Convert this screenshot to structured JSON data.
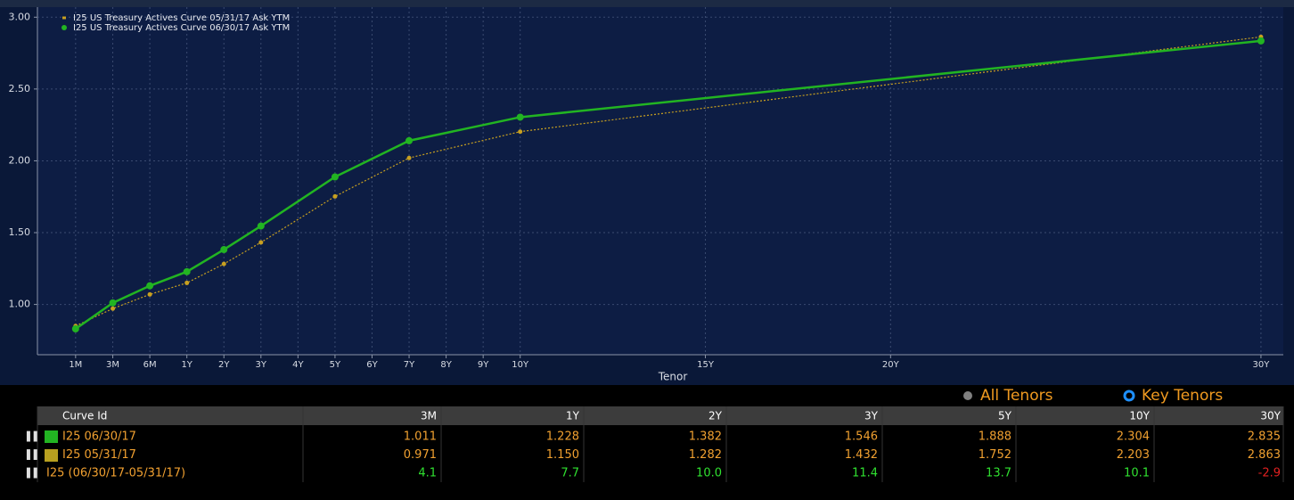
{
  "chart_data": {
    "type": "line",
    "x_label": "Tenor",
    "x": [
      0.083,
      0.25,
      0.5,
      1,
      2,
      3,
      5,
      7,
      10,
      30
    ],
    "series": [
      {
        "name": "I25 US Treasury Actives Curve 05/31/17 Ask YTM",
        "color": "#c8a020",
        "values": [
          0.85,
          0.971,
          1.07,
          1.15,
          1.282,
          1.432,
          1.752,
          2.02,
          2.203,
          2.863
        ]
      },
      {
        "name": "I25 US Treasury Actives Curve 06/30/17 Ask YTM",
        "color": "#22b422",
        "values": [
          0.83,
          1.011,
          1.13,
          1.228,
          1.382,
          1.546,
          1.888,
          2.14,
          2.304,
          2.835
        ]
      }
    ],
    "xlim": [
      0,
      30.5
    ],
    "xticks": [
      {
        "value": 0.083,
        "label": "1M"
      },
      {
        "value": 0.25,
        "label": "3M"
      },
      {
        "value": 0.5,
        "label": "6M"
      },
      {
        "value": 1,
        "label": "1Y"
      },
      {
        "value": 2,
        "label": "2Y"
      },
      {
        "value": 3,
        "label": "3Y"
      },
      {
        "value": 4,
        "label": "4Y"
      },
      {
        "value": 5,
        "label": "5Y"
      },
      {
        "value": 6,
        "label": "6Y"
      },
      {
        "value": 7,
        "label": "7Y"
      },
      {
        "value": 8,
        "label": "8Y"
      },
      {
        "value": 9,
        "label": "9Y"
      },
      {
        "value": 10,
        "label": "10Y"
      },
      {
        "value": 15,
        "label": "15Y"
      },
      {
        "value": 20,
        "label": "20Y"
      },
      {
        "value": 30,
        "label": "30Y"
      }
    ],
    "ylim": [
      0.65,
      3.07
    ],
    "yticks": [
      {
        "value": 1,
        "label": "1.00"
      },
      {
        "value": 1.5,
        "label": "1.50"
      },
      {
        "value": 2,
        "label": "2.00"
      },
      {
        "value": 2.5,
        "label": "2.50"
      },
      {
        "value": 3,
        "label": "3.00"
      }
    ],
    "grid": true,
    "legend": "top-left"
  },
  "controls": {
    "all_tenors": "All Tenors",
    "key_tenors": "Key Tenors"
  },
  "table": {
    "header": [
      "Curve Id",
      "3M",
      "1Y",
      "2Y",
      "3Y",
      "5Y",
      "10Y",
      "30Y"
    ],
    "rows": [
      [
        "I25 06/30/17",
        "1.011",
        "1.228",
        "1.382",
        "1.546",
        "1.888",
        "2.304",
        "2.835"
      ],
      [
        "I25 05/31/17",
        "0.971",
        "1.150",
        "1.282",
        "1.432",
        "1.752",
        "2.203",
        "2.863"
      ],
      [
        "I25 (06/30/17-05/31/17)",
        "4.1",
        "7.7",
        "10.0",
        "11.4",
        "13.7",
        "10.1",
        "-2.9"
      ]
    ]
  }
}
